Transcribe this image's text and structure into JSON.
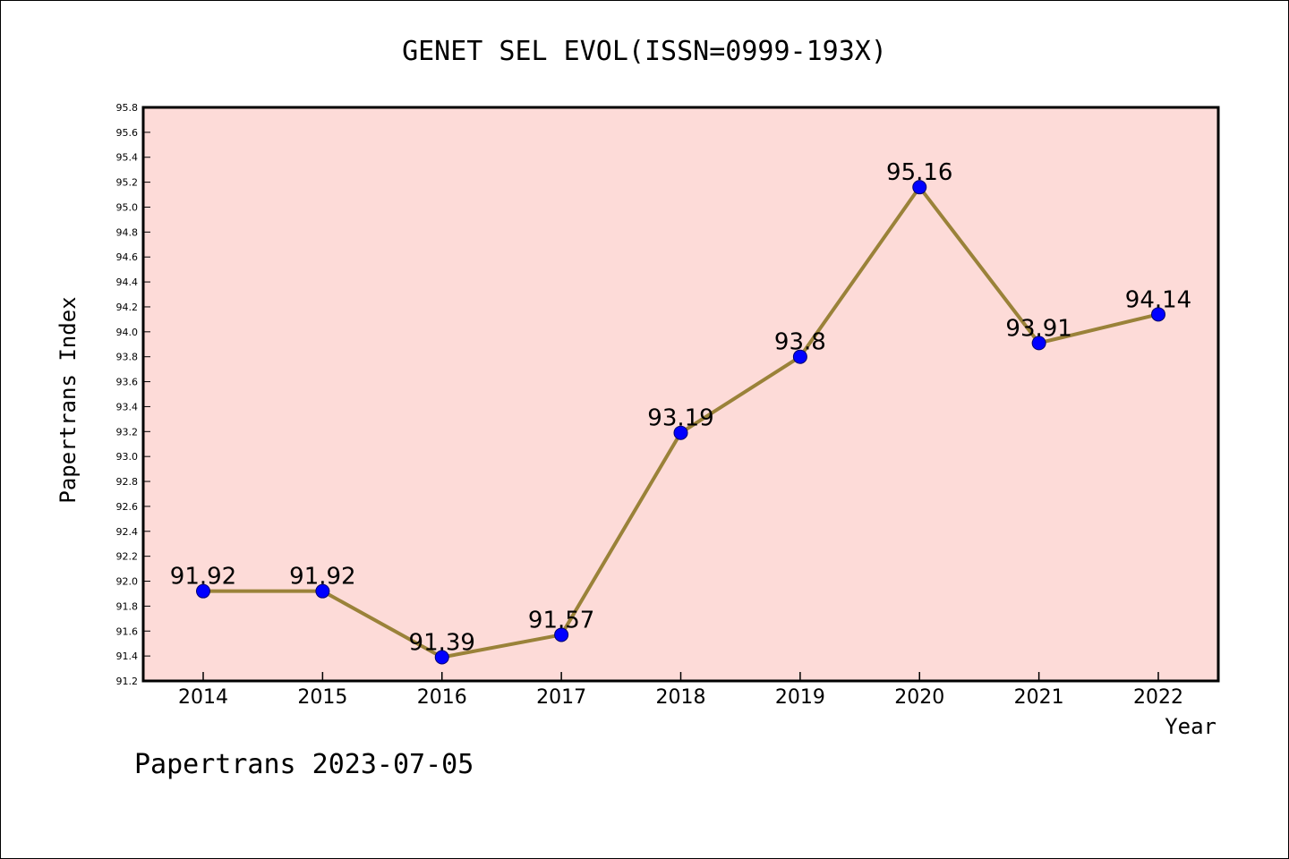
{
  "chart_data": {
    "type": "line",
    "title": "GENET SEL EVOL(ISSN=0999-193X)",
    "xlabel": "Year",
    "ylabel": "Papertrans Index",
    "categories": [
      "2014",
      "2015",
      "2016",
      "2017",
      "2018",
      "2019",
      "2020",
      "2021",
      "2022"
    ],
    "series": [
      {
        "values": [
          91.92,
          91.92,
          91.39,
          91.57,
          93.19,
          93.8,
          95.16,
          93.91,
          94.14
        ],
        "labels": [
          "91.92",
          "91.92",
          "91.39",
          "91.57",
          "93.19",
          "93.8",
          "95.16",
          "93.91",
          "94.14"
        ],
        "line_color": "#9a8239",
        "marker_color": "#0000ff"
      }
    ],
    "ylim": [
      91.2,
      95.8
    ],
    "yticks": [
      "91.2",
      "91.4",
      "91.6",
      "91.8",
      "92.0",
      "92.2",
      "92.4",
      "92.6",
      "92.8",
      "93.0",
      "93.2",
      "93.4",
      "93.6",
      "93.8",
      "94.0",
      "94.2",
      "94.4",
      "94.6",
      "94.8",
      "95.0",
      "95.2",
      "95.4",
      "95.6",
      "95.8"
    ],
    "plot_background": "#fddbd8",
    "grid": false,
    "legend": "none"
  },
  "footer": {
    "text": "Papertrans 2023-07-05"
  }
}
